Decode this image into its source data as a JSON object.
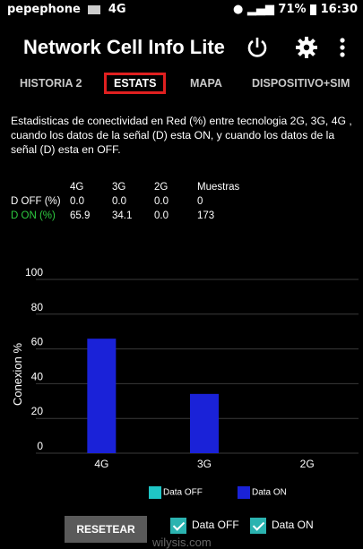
{
  "status_bar": {
    "carrier": "pepephone",
    "network": "4G",
    "battery": "71%",
    "time": "16:30"
  },
  "app": {
    "title": "Network Cell Info Lite"
  },
  "tabs": [
    {
      "label": "HISTORIA 2",
      "active": false
    },
    {
      "label": "ESTATS",
      "active": true
    },
    {
      "label": "MAPA",
      "active": false
    },
    {
      "label": "DISPOSITIVO+SIM",
      "active": false
    }
  ],
  "description": "Estadisticas de conectividad en Red (%) entre tecnologia 2G, 3G, 4G , cuando los datos de la señal (D) esta ON, y cuando los datos de la señal (D) esta en OFF.",
  "stats_table": {
    "headers": [
      "4G",
      "3G",
      "2G",
      "Muestras"
    ],
    "rows": [
      {
        "label": "D OFF (%)",
        "values": [
          "0.0",
          "0.0",
          "0.0",
          "0"
        ]
      },
      {
        "label": "D ON (%)",
        "values": [
          "65.9",
          "34.1",
          "0.0",
          "173"
        ]
      }
    ]
  },
  "chart_data": {
    "type": "bar",
    "categories": [
      "4G",
      "3G",
      "2G"
    ],
    "series": [
      {
        "name": "Data OFF",
        "values": [
          0.0,
          0.0,
          0.0
        ],
        "color": "#1fc6c6"
      },
      {
        "name": "Data ON",
        "values": [
          65.9,
          34.1,
          0.0
        ],
        "color": "#1a22d8"
      }
    ],
    "ylabel": "Conexion %",
    "yticks": [
      "0",
      "20",
      "40",
      "60",
      "80",
      "100"
    ],
    "ylim": [
      0,
      100
    ],
    "legend": "bottom"
  },
  "controls": {
    "reset_label": "RESETEAR",
    "data_off_label": "Data OFF",
    "data_on_label": "Data ON",
    "data_off_checked": true,
    "data_on_checked": true
  },
  "watermark": "wilysis.com",
  "colors": {
    "tab_highlight": "#e02020",
    "accent": "#2bb3b0",
    "d_on_label": "#2ecc40"
  }
}
